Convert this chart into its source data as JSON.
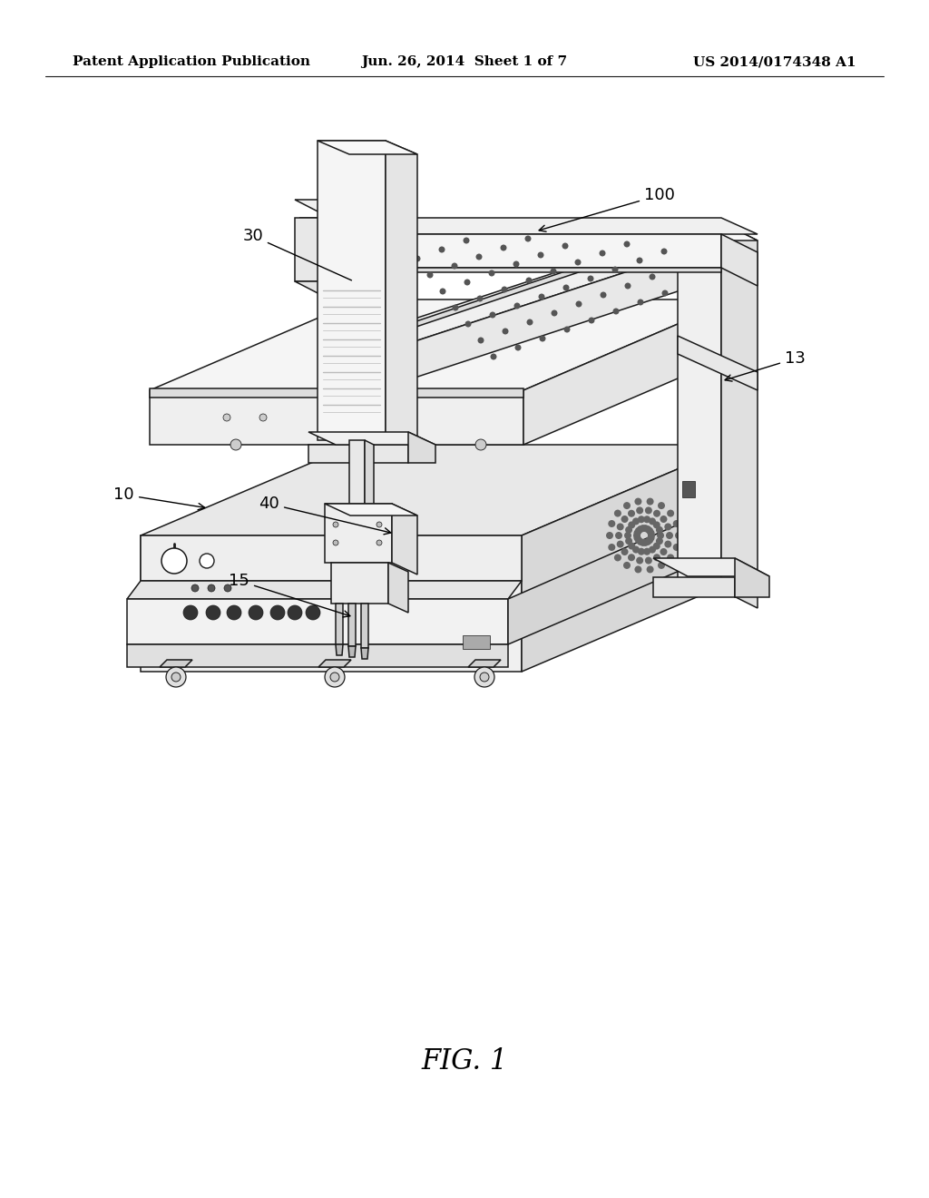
{
  "background_color": "#ffffff",
  "header_left": "Patent Application Publication",
  "header_center": "Jun. 26, 2014  Sheet 1 of 7",
  "header_right": "US 2014/0174348 A1",
  "header_fontsize": 11,
  "figure_label": "FIG. 1",
  "figure_label_fontsize": 22,
  "label_fontsize": 13,
  "line_color": "#1a1a1a",
  "line_width": 1.1,
  "fill_color": "#ffffff",
  "shadow_color": "#e8e8e8"
}
